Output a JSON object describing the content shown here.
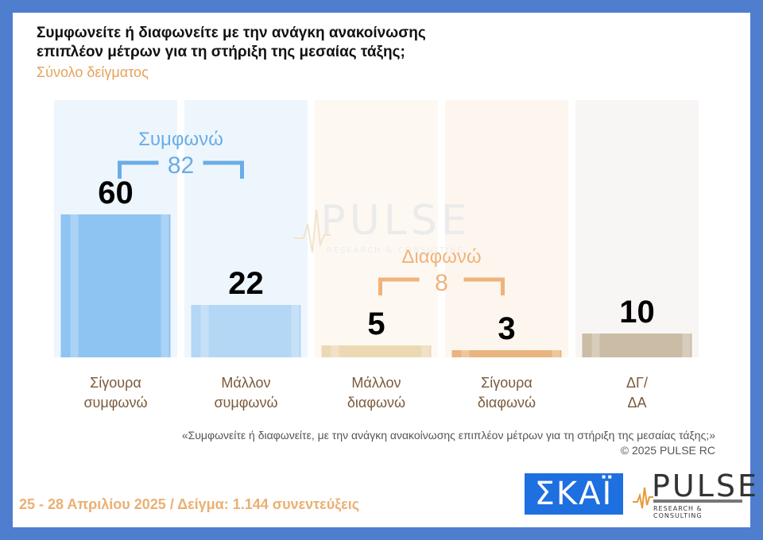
{
  "header": {
    "title_line1": "Συμφωνείτε ή διαφωνείτε με την ανάγκη ανακοίνωσης",
    "title_line2": "επιπλέον μέτρων για τη στήριξη της μεσαίας τάξης;",
    "subtitle": "Σύνολο δείγματος"
  },
  "chart_data": {
    "type": "bar",
    "categories": [
      "Σίγουρα συμφωνώ",
      "Μάλλον συμφωνώ",
      "Μάλλον διαφωνώ",
      "Σίγουρα διαφωνώ",
      "ΔΓ/ ΔΑ"
    ],
    "category_lines": [
      [
        "Σίγουρα",
        "συμφωνώ"
      ],
      [
        "Μάλλον",
        "συμφωνώ"
      ],
      [
        "Μάλλον",
        "διαφωνώ"
      ],
      [
        "Σίγουρα",
        "διαφωνώ"
      ],
      [
        "ΔΓ/",
        "ΔΑ"
      ]
    ],
    "values": [
      60,
      22,
      5,
      3,
      10
    ],
    "colors": [
      "#8ec4f2",
      "#b3d7f5",
      "#ecd9b4",
      "#e9b47e",
      "#cbbca6"
    ],
    "ylim": [
      0,
      100
    ],
    "groups": [
      {
        "label": "Συμφωνώ",
        "total": "82",
        "color": "#6aace8",
        "from": 0,
        "to": 1
      },
      {
        "label": "Διαφωνώ",
        "total": "8",
        "color": "#efb37c",
        "from": 2,
        "to": 3
      }
    ]
  },
  "watermark": {
    "word": "PULSE",
    "sub": "RESEARCH & CONSULTING"
  },
  "notes": {
    "quote": "«Συμφωνείτε ή διαφωνείτε, με την ανάγκη ανακοίνωσης επιπλέον μέτρων για τη στήριξη της μεσαίας τάξης;»",
    "copyright": "©  2025  PULSE RC"
  },
  "footer": {
    "text": "25 - 28 Απριλίου 2025  /  Δείγμα:  1.144 συνεντεύξεις"
  },
  "logos": {
    "skai": "ΣΚΑΪ",
    "pulse": "PULSE",
    "pulse_sub": "RESEARCH & CONSULTING"
  }
}
